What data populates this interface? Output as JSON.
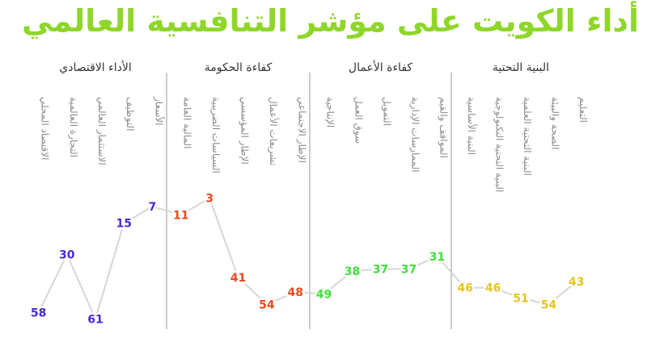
{
  "title": "أداء الكويت على مؤشر التنافسية العالمي",
  "colors": {
    "title": "#8fd62a",
    "line": "#d6d6d6",
    "divider": "#9a9a9a"
  },
  "chart_data": {
    "type": "line",
    "y_axis": "rank",
    "y_inverted": true,
    "ylim": [
      0,
      62
    ],
    "groups": [
      {
        "name": "الأداء الاقتصادي",
        "color": "#4a2ad4",
        "categories": [
          "الاقتصاد المحلي",
          "التجارة العالمية",
          "الاستثمار العالمي",
          "التوظيف",
          "الأسعار"
        ],
        "values": [
          58,
          30,
          61,
          15,
          7
        ]
      },
      {
        "name": "كفاءة الحكومة",
        "color": "#ea4a1c",
        "categories": [
          "المالية العامة",
          "السياسات الضريبية",
          "الإطار المؤسسي",
          "تشريعات الأعمال",
          "الإطار الاجتماعي"
        ],
        "values": [
          11,
          3,
          41,
          54,
          48
        ]
      },
      {
        "name": "كفاءة الأعمال",
        "color": "#3fe03a",
        "categories": [
          "الإنتاجية",
          "سوق العمل",
          "التمويل",
          "الممارسات الإدارية",
          "المواقف والقيم"
        ],
        "values": [
          49,
          38,
          37,
          37,
          31
        ]
      },
      {
        "name": "البنية التحتية",
        "color": "#e6c41c",
        "categories": [
          "البنية الأساسية",
          "البنية التحتية التكنولوجية",
          "البنية التحتية العلمية",
          "الصحة والبيئة",
          "التعليم"
        ],
        "values": [
          46,
          46,
          51,
          54,
          43
        ]
      }
    ]
  }
}
